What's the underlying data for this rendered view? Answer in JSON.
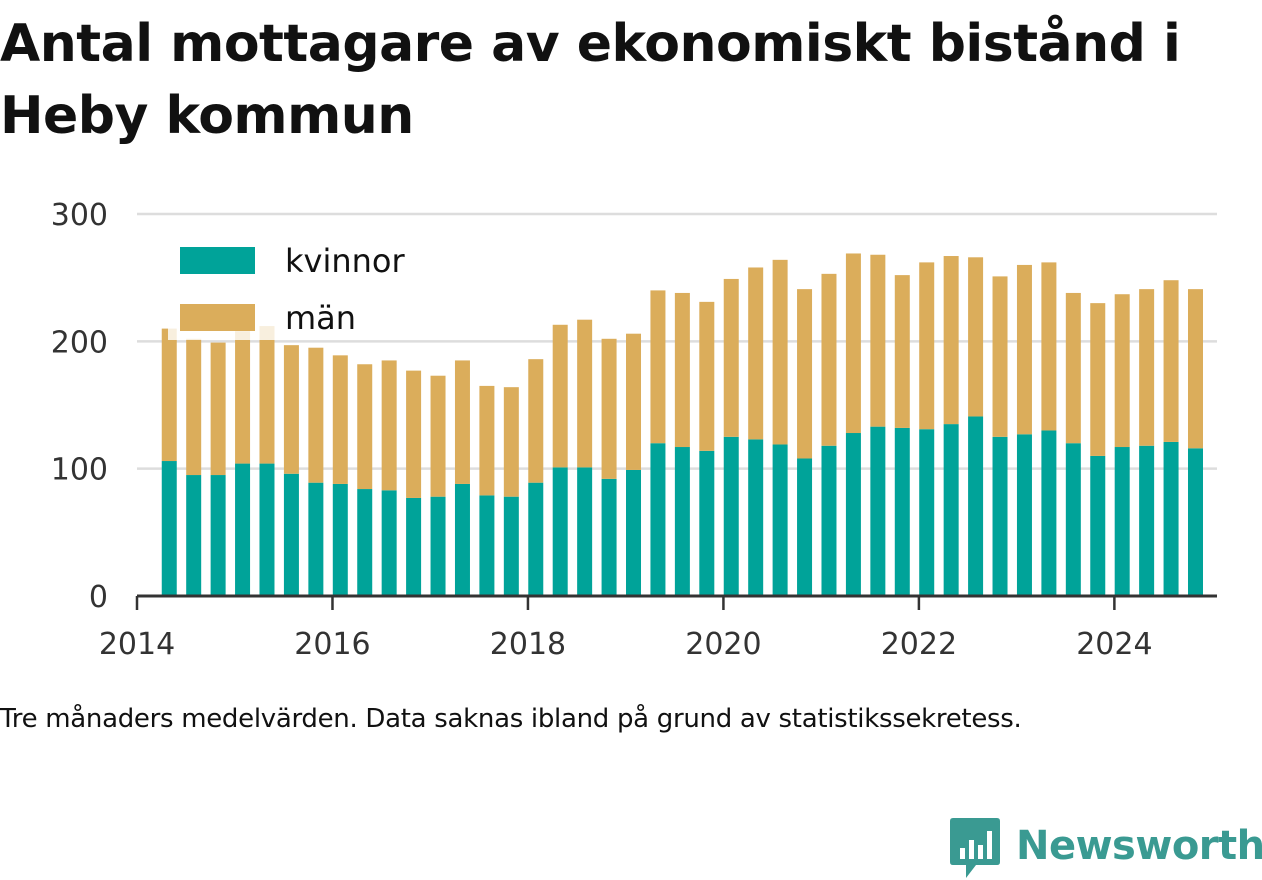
{
  "title": "Antal mottagare av ekonomiskt bistånd i Heby kommun",
  "footnote": "Tre månaders medelvärden. Data saknas ibland på grund av statistikssekretess.",
  "brand": {
    "name": "Newsworthy",
    "color": "#3a9a92",
    "icon": "newsworthy-chart-bubble-icon"
  },
  "chart_data": {
    "type": "bar",
    "stacked": true,
    "x": [
      2014.33,
      2014.58,
      2014.83,
      2015.08,
      2015.33,
      2015.58,
      2015.83,
      2016.08,
      2016.33,
      2016.58,
      2016.83,
      2017.08,
      2017.33,
      2017.58,
      2017.83,
      2018.08,
      2018.33,
      2018.58,
      2018.83,
      2019.08,
      2019.33,
      2019.58,
      2019.83,
      2020.08,
      2020.33,
      2020.58,
      2020.83,
      2021.08,
      2021.33,
      2021.58,
      2021.83,
      2022.08,
      2022.33,
      2022.58,
      2022.83,
      2023.08,
      2023.33,
      2023.58,
      2023.83,
      2024.08,
      2024.33,
      2024.58,
      2024.83
    ],
    "series": [
      {
        "name": "kvinnor",
        "color": "#00a399",
        "values": [
          106,
          95,
          95,
          104,
          104,
          96,
          89,
          88,
          84,
          83,
          77,
          78,
          88,
          79,
          78,
          89,
          101,
          101,
          92,
          99,
          120,
          117,
          114,
          125,
          123,
          119,
          108,
          118,
          128,
          133,
          132,
          131,
          135,
          141,
          125,
          127,
          130,
          120,
          110,
          117,
          118,
          121,
          116
        ]
      },
      {
        "name": "män",
        "color": "#dbad5b",
        "values": [
          104,
          107,
          104,
          104,
          108,
          101,
          106,
          101,
          98,
          102,
          100,
          95,
          97,
          86,
          86,
          97,
          112,
          116,
          110,
          107,
          120,
          121,
          117,
          124,
          135,
          145,
          133,
          135,
          141,
          135,
          120,
          131,
          132,
          125,
          126,
          133,
          132,
          118,
          120,
          120,
          123,
          127,
          125
        ]
      }
    ],
    "xlim": [
      2014,
      2025.05
    ],
    "xticks": [
      2014,
      2016,
      2018,
      2020,
      2022,
      2024
    ],
    "xtick_labels": [
      "2014",
      "2016",
      "2018",
      "2020",
      "2022",
      "2024"
    ],
    "ylim": [
      0,
      300
    ],
    "yticks": [
      0,
      100,
      200,
      300
    ],
    "ytick_labels": [
      "0",
      "100",
      "200",
      "300"
    ],
    "grid": true,
    "legend_position": "top-left",
    "xlabel": "",
    "ylabel": ""
  }
}
